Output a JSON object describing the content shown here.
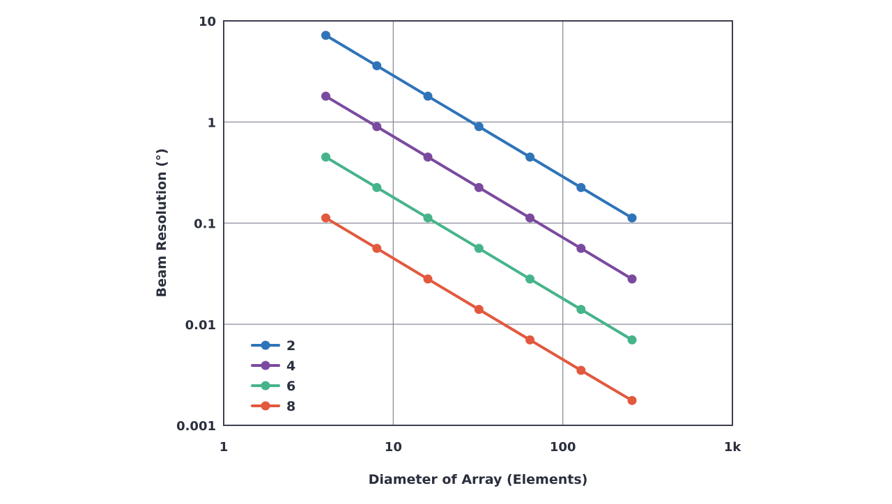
{
  "chart_data": {
    "type": "line",
    "title": "",
    "xlabel": "Diameter of Array (Elements)",
    "ylabel": "Beam Resolution (°)",
    "xscale": "log",
    "yscale": "log",
    "xlim": [
      1,
      1000
    ],
    "ylim": [
      0.001,
      10
    ],
    "x_ticks": [
      {
        "v": 1,
        "label": "1"
      },
      {
        "v": 10,
        "label": "10"
      },
      {
        "v": 100,
        "label": "100"
      },
      {
        "v": 1000,
        "label": "1k"
      }
    ],
    "y_ticks": [
      {
        "v": 10,
        "label": "10"
      },
      {
        "v": 1,
        "label": "1"
      },
      {
        "v": 0.1,
        "label": "0.1"
      },
      {
        "v": 0.01,
        "label": "0.01"
      },
      {
        "v": 0.001,
        "label": "0.001"
      }
    ],
    "grid": true,
    "legend_position": "bottom-left",
    "x": [
      4,
      8,
      16,
      32,
      64,
      128,
      256
    ],
    "series": [
      {
        "name": "2",
        "color": "#2f74b8",
        "values": [
          7.2,
          3.6,
          1.8,
          0.9,
          0.45,
          0.225,
          0.1125
        ]
      },
      {
        "name": "4",
        "color": "#7a4a9f",
        "values": [
          1.8,
          0.9,
          0.45,
          0.225,
          0.1125,
          0.05625,
          0.028
        ]
      },
      {
        "name": "6",
        "color": "#46b48a",
        "values": [
          0.45,
          0.225,
          0.1125,
          0.05625,
          0.028,
          0.014,
          0.007
        ]
      },
      {
        "name": "8",
        "color": "#e2593e",
        "values": [
          0.1125,
          0.05625,
          0.028,
          0.014,
          0.007,
          0.0035,
          0.00176
        ]
      }
    ]
  }
}
